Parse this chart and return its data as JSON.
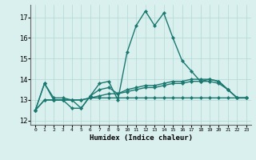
{
  "x_values": [
    0,
    1,
    2,
    3,
    4,
    5,
    6,
    7,
    8,
    9,
    10,
    11,
    12,
    13,
    14,
    15,
    16,
    17,
    18,
    19,
    20,
    21,
    22,
    23
  ],
  "line1": [
    12.5,
    13.8,
    13.0,
    13.0,
    12.6,
    12.6,
    13.2,
    13.8,
    13.9,
    13.0,
    15.3,
    16.6,
    17.3,
    16.6,
    17.2,
    16.0,
    14.9,
    14.4,
    13.9,
    13.9,
    13.8,
    13.5,
    13.1,
    13.1
  ],
  "line2": [
    12.5,
    13.0,
    13.0,
    13.0,
    13.0,
    13.0,
    13.1,
    13.1,
    13.1,
    13.1,
    13.1,
    13.1,
    13.1,
    13.1,
    13.1,
    13.1,
    13.1,
    13.1,
    13.1,
    13.1,
    13.1,
    13.1,
    13.1,
    13.1
  ],
  "line3": [
    12.5,
    13.0,
    13.0,
    13.0,
    13.0,
    13.0,
    13.1,
    13.2,
    13.3,
    13.3,
    13.4,
    13.5,
    13.6,
    13.6,
    13.7,
    13.8,
    13.8,
    13.9,
    13.9,
    14.0,
    13.9,
    13.5,
    13.1,
    13.1
  ],
  "line4": [
    12.5,
    13.8,
    13.1,
    13.1,
    13.0,
    12.6,
    13.2,
    13.5,
    13.6,
    13.3,
    13.5,
    13.6,
    13.7,
    13.7,
    13.8,
    13.9,
    13.9,
    14.0,
    14.0,
    14.0,
    13.9,
    13.5,
    13.1,
    13.1
  ],
  "line_color": "#1a7870",
  "bg_color": "#d9f0ee",
  "grid_color": "#b0d8d4",
  "ylabel_values": [
    12,
    13,
    14,
    15,
    16,
    17
  ],
  "ylim": [
    11.8,
    17.6
  ],
  "xlim": [
    -0.5,
    23.5
  ],
  "xlabel": "Humidex (Indice chaleur)",
  "marker": "D",
  "marker_size": 2.2,
  "linewidth": 1.0
}
